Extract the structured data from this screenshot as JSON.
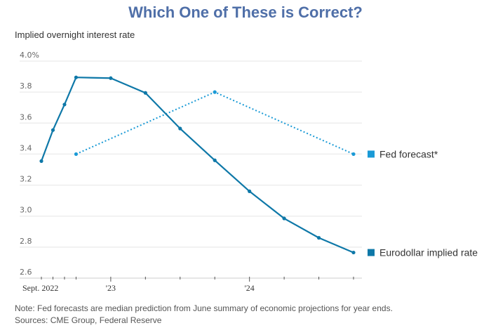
{
  "header": {
    "title": "Which One of These is Correct?",
    "subtitle": "Implied overnight interest rate"
  },
  "footer": {
    "note": "Note: Fed forecasts are median prediction from June summary of economic projections for year ends.",
    "sources": "Sources: CME Group, Federal Reserve"
  },
  "chart_data": {
    "type": "line",
    "title": "Which One of These is Correct?",
    "ylabel": "Implied overnight interest rate",
    "xlabel": "",
    "ylim": [
      2.6,
      4.0
    ],
    "yticks": [
      {
        "value": 4.0,
        "label": "4.0%"
      },
      {
        "value": 3.8,
        "label": "3.8"
      },
      {
        "value": 3.6,
        "label": "3.6"
      },
      {
        "value": 3.4,
        "label": "3.4"
      },
      {
        "value": 3.2,
        "label": "3.2"
      },
      {
        "value": 3.0,
        "label": "3.0"
      },
      {
        "value": 2.8,
        "label": "2.8"
      },
      {
        "value": 2.6,
        "label": "2.6"
      }
    ],
    "x_note": "x in months since Sept. 2022 (Sept 2022 = 0); first four points monthly, then quarterly",
    "xlim": [
      0,
      27
    ],
    "xtick_positions": [
      0,
      1,
      2,
      3,
      6,
      9,
      12,
      15,
      18,
      21,
      24,
      27
    ],
    "xtick_labels": [
      {
        "x": 0,
        "label": "Sept. 2022"
      },
      {
        "x": 6,
        "label": "'23"
      },
      {
        "x": 18,
        "label": "'24"
      }
    ],
    "grid": true,
    "legend": "right",
    "series": [
      {
        "name": "Fed forecast*",
        "style": "dotted",
        "color": "#1a9ad6",
        "x": [
          3,
          15,
          27
        ],
        "values": [
          3.4,
          3.8,
          3.4
        ]
      },
      {
        "name": "Eurodollar implied rate",
        "style": "solid",
        "color": "#0e78a8",
        "x": [
          0,
          1,
          2,
          3,
          6,
          9,
          12,
          15,
          18,
          21,
          24,
          27
        ],
        "values": [
          3.355,
          3.555,
          3.72,
          3.895,
          3.89,
          3.795,
          3.565,
          3.36,
          3.16,
          2.985,
          2.86,
          2.765
        ]
      }
    ]
  }
}
